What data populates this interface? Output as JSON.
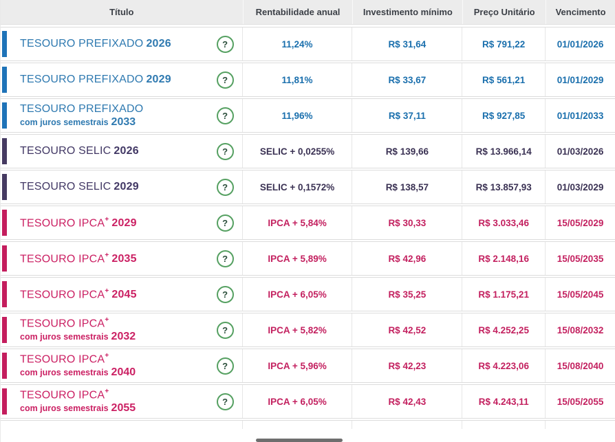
{
  "header": {
    "title": "Título",
    "rate": "Rentabilidade anual",
    "min": "Investimento mínimo",
    "price": "Preço Unitário",
    "maturity": "Vencimento"
  },
  "icons": {
    "help_glyph": "?"
  },
  "colors": {
    "prefixado_accent": "#1e73b8",
    "selic_accent": "#453a61",
    "ipca_accent": "#c41d5d",
    "help_green": "#55a061",
    "header_bg": "#ececec"
  },
  "rows": [
    {
      "title": "TESOURO PREFIXADO",
      "year": "2026",
      "rate": "11,24%",
      "min": "R$ 31,64",
      "price": "R$ 791,22",
      "maturity": "01/01/2026"
    },
    {
      "title": "TESOURO PREFIXADO",
      "year": "2029",
      "rate": "11,81%",
      "min": "R$ 33,67",
      "price": "R$ 561,21",
      "maturity": "01/01/2029"
    },
    {
      "title": "TESOURO PREFIXADO",
      "line2": "com juros semestrais",
      "year": "2033",
      "rate": "11,96%",
      "min": "R$ 37,11",
      "price": "R$ 927,85",
      "maturity": "01/01/2033"
    },
    {
      "title": "TESOURO SELIC",
      "year": "2026",
      "rate": "SELIC + 0,0255%",
      "min": "R$ 139,66",
      "price": "R$ 13.966,14",
      "maturity": "01/03/2026"
    },
    {
      "title": "TESOURO SELIC",
      "year": "2029",
      "rate": "SELIC + 0,1572%",
      "min": "R$ 138,57",
      "price": "R$ 13.857,93",
      "maturity": "01/03/2029"
    },
    {
      "title": "TESOURO IPCA",
      "plus": "+",
      "year": "2029",
      "rate": "IPCA + 5,84%",
      "min": "R$ 30,33",
      "price": "R$ 3.033,46",
      "maturity": "15/05/2029"
    },
    {
      "title": "TESOURO IPCA",
      "plus": "+",
      "year": "2035",
      "rate": "IPCA + 5,89%",
      "min": "R$ 42,96",
      "price": "R$ 2.148,16",
      "maturity": "15/05/2035"
    },
    {
      "title": "TESOURO IPCA",
      "plus": "+",
      "year": "2045",
      "rate": "IPCA + 6,05%",
      "min": "R$ 35,25",
      "price": "R$ 1.175,21",
      "maturity": "15/05/2045"
    },
    {
      "title": "TESOURO IPCA",
      "plus": "+",
      "line2": "com juros semestrais",
      "year": "2032",
      "rate": "IPCA + 5,82%",
      "min": "R$ 42,52",
      "price": "R$ 4.252,25",
      "maturity": "15/08/2032"
    },
    {
      "title": "TESOURO IPCA",
      "plus": "+",
      "line2": "com juros semestrais",
      "year": "2040",
      "rate": "IPCA + 5,96%",
      "min": "R$ 42,23",
      "price": "R$ 4.223,06",
      "maturity": "15/08/2040"
    },
    {
      "title": "TESOURO IPCA",
      "plus": "+",
      "line2": "com juros semestrais",
      "year": "2055",
      "rate": "IPCA + 6,05%",
      "min": "R$ 42,43",
      "price": "R$ 4.243,11",
      "maturity": "15/05/2055"
    }
  ]
}
